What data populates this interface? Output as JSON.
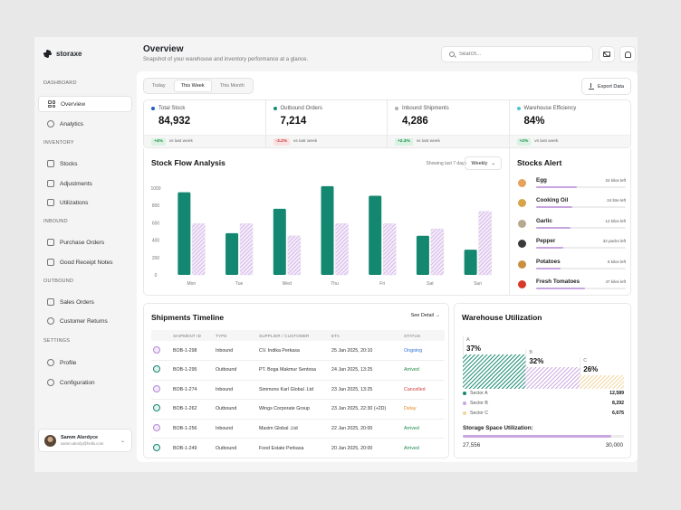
{
  "brand": {
    "name": "storaxe"
  },
  "sidebar": {
    "sections": [
      "DASHBOARD",
      "INVENTORY",
      "INBOUND",
      "OUTBOUND",
      "SETTINGS"
    ],
    "items": [
      {
        "label": "Overview",
        "icon": "grid-icon",
        "active": true
      },
      {
        "label": "Analytics",
        "icon": "pie-icon"
      },
      {
        "label": "Stocks",
        "icon": "box-icon"
      },
      {
        "label": "Adjustments",
        "icon": "cube-icon"
      },
      {
        "label": "Utilizations",
        "icon": "layers-icon"
      },
      {
        "label": "Purchase Orders",
        "icon": "order-icon"
      },
      {
        "label": "Good Receipt Notes",
        "icon": "receipt-icon"
      },
      {
        "label": "Sales Orders",
        "icon": "sales-icon"
      },
      {
        "label": "Customer Returns",
        "icon": "return-icon"
      },
      {
        "label": "Profile",
        "icon": "user-icon"
      },
      {
        "label": "Configuration",
        "icon": "gear-icon"
      }
    ],
    "user": {
      "name": "Samm Alerdyce",
      "email": "samm.alerdy@hello.com"
    }
  },
  "header": {
    "title": "Overview",
    "subtitle": "Snapshot of your warehouse and inventory performance at a glance.",
    "search_placeholder": "Search..."
  },
  "toolbar": {
    "tabs": [
      "Today",
      "This Week",
      "This Month"
    ],
    "active_tab": "This Week",
    "export_label": "Export Data"
  },
  "stats": [
    {
      "label": "Total Stock",
      "value": "84,932",
      "change": "+4%",
      "trend": "up",
      "note": "vs last week",
      "color": "#1f5fbf"
    },
    {
      "label": "Outbound Orders",
      "value": "7,214",
      "change": "-3.2%",
      "trend": "down",
      "note": "vs last week",
      "color": "#1a8a72"
    },
    {
      "label": "Inbound Shipments",
      "value": "4,286",
      "change": "+2.3%",
      "trend": "up",
      "note": "vs last week",
      "color": "#b0b0b0"
    },
    {
      "label": "Warehouse Efficiency",
      "value": "84%",
      "change": "+2%",
      "trend": "up",
      "note": "vs last week",
      "color": "#4fc3d6"
    }
  ],
  "stock_flow": {
    "title": "Stock Flow Analysis",
    "showing": "Showing last 7 days",
    "period": "Weekly"
  },
  "chart_data": {
    "type": "bar",
    "categories": [
      "Mon",
      "Tue",
      "Wed",
      "Thu",
      "Fri",
      "Sat",
      "Sun"
    ],
    "series": [
      {
        "values": [
          950,
          480,
          760,
          1020,
          910,
          450,
          290
        ],
        "color": "#13876f"
      },
      {
        "values": [
          590,
          590,
          450,
          590,
          590,
          530,
          730
        ],
        "color": "#c9a6e0"
      }
    ],
    "yticks": [
      0,
      200,
      400,
      600,
      800,
      1000
    ],
    "ylim": [
      0,
      1050
    ]
  },
  "stocks_alert": {
    "title": "Stocks Alert",
    "items": [
      {
        "name": "Egg",
        "qty": "24 kilos left",
        "fraction": 0.45,
        "icon": "egg-icon",
        "color": "#e6a15a"
      },
      {
        "name": "Cooking Oil",
        "qty": "24 litre left",
        "fraction": 0.4,
        "icon": "oil-bottle-icon",
        "color": "#d9a34a"
      },
      {
        "name": "Garlic",
        "qty": "12 kilos left",
        "fraction": 0.38,
        "icon": "garlic-icon",
        "color": "#b8a890"
      },
      {
        "name": "Pepper",
        "qty": "32 packs left",
        "fraction": 0.3,
        "icon": "pepper-icon",
        "color": "#3a3a3a"
      },
      {
        "name": "Potatoes",
        "qty": "8 kilos left",
        "fraction": 0.27,
        "icon": "potato-icon",
        "color": "#c8903f"
      },
      {
        "name": "Fresh Tomatoes",
        "qty": "47 kilos left",
        "fraction": 0.55,
        "icon": "tomato-icon",
        "color": "#d83a2a"
      }
    ]
  },
  "shipments": {
    "title": "Shipments Timeline",
    "see_detail": "See Detail",
    "columns": [
      "SHIPMENT ID",
      "TYPE",
      "SUPPLIER / CUSTOMER",
      "ETA",
      "STATUS"
    ],
    "rows": [
      {
        "id": "BOB-1-298",
        "type": "Inbound",
        "party": "CV. Indika Perkasa",
        "eta": "25 Jan 2025, 20:10",
        "status": "Ongoing",
        "status_color": "#2f6fd8"
      },
      {
        "id": "BOB-1-295",
        "type": "Outbound",
        "party": "PT. Boga Makmur Sentosa",
        "eta": "24 Jan 2025, 13:25",
        "status": "Arrived",
        "status_color": "#1b8a4a"
      },
      {
        "id": "BOB-1-274",
        "type": "Inbound",
        "party": "Simmons Karl Global .Ltd",
        "eta": "23 Jan 2025, 13:25",
        "status": "Cancelled",
        "status_color": "#d23a3a"
      },
      {
        "id": "BOB-1-262",
        "type": "Outbound",
        "party": "Wings Corporate Group",
        "eta": "23 Jan 2025, 22:30 (+2D)",
        "status": "Delay",
        "status_color": "#e08a1e"
      },
      {
        "id": "BOB-1-256",
        "type": "Inbound",
        "party": "Maxim Global .Ltd",
        "eta": "22 Jan 2025, 20:00",
        "status": "Arrived",
        "status_color": "#1b8a4a"
      },
      {
        "id": "BOB-1-249",
        "type": "Outbound",
        "party": "Food Estate Perkasa",
        "eta": "20 Jan 2025, 20:00",
        "status": "Arrived",
        "status_color": "#1b8a4a"
      }
    ]
  },
  "utilization": {
    "title": "Warehouse Utilization",
    "sectors": [
      {
        "letter": "A",
        "pct": "37%",
        "fraction": 0.37,
        "name": "Sector A",
        "value": "12,589",
        "color": "#13876f"
      },
      {
        "letter": "B",
        "pct": "32%",
        "fraction": 0.32,
        "name": "Sector B",
        "value": "8,292",
        "color": "#c9a6e0"
      },
      {
        "letter": "C",
        "pct": "26%",
        "fraction": 0.26,
        "name": "Sector C",
        "value": "6,675",
        "color": "#f0d49a"
      }
    ],
    "storage_label": "Storage Space Utilization:",
    "storage_used": "27,556",
    "storage_total": "30,000",
    "storage_fraction": 0.92
  }
}
